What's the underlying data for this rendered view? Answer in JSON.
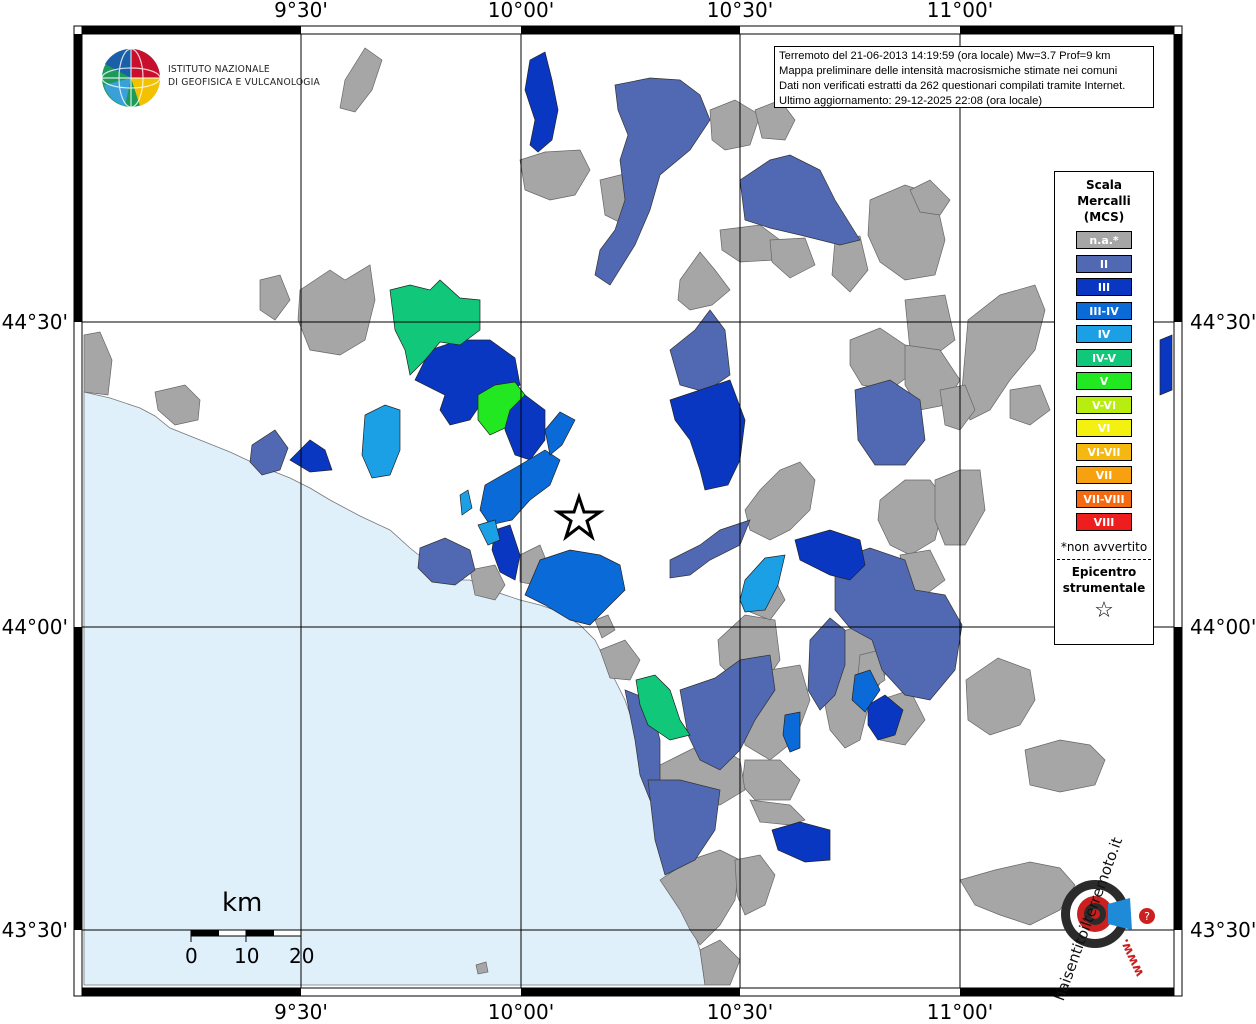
{
  "coordinates": {
    "lon_labels": [
      "9°30'",
      "10°00'",
      "10°30'",
      "11°00'"
    ],
    "lat_labels": [
      "44°30'",
      "44°00'",
      "43°30'"
    ]
  },
  "logo": {
    "line1": "ISTITUTO NAZIONALE",
    "line2": "DI GEOFISICA E VULCANOLOGIA"
  },
  "info": {
    "line1": "Terremoto del 21-06-2013 14:19:59 (ora locale) Mw=3.7 Prof=9 km",
    "line2": "Mappa preliminare delle intensità macrosismiche stimate nei comuni",
    "line3": "Dati non verificati estratti da 262 questionari compilati tramite Internet.",
    "line4": "Ultimo aggiornamento: 29-12-2025 22:08 (ora locale)"
  },
  "legend": {
    "title_line1": "Scala",
    "title_line2": "Mercalli",
    "title_line3": "(MCS)",
    "items": [
      {
        "label": "n.a.*",
        "color": "#a6a6a6"
      },
      {
        "label": "II",
        "color": "#5168b2"
      },
      {
        "label": "III",
        "color": "#0a37c2"
      },
      {
        "label": "III-IV",
        "color": "#0a6ad8"
      },
      {
        "label": "IV",
        "color": "#1ba0e6"
      },
      {
        "label": "IV-V",
        "color": "#10c77a"
      },
      {
        "label": "V",
        "color": "#22e822"
      },
      {
        "label": "V-VI",
        "color": "#b7ee10"
      },
      {
        "label": "VI",
        "color": "#f4f010"
      },
      {
        "label": "VI-VII",
        "color": "#f4b810"
      },
      {
        "label": "VII",
        "color": "#f7a010"
      },
      {
        "label": "VII-VIII",
        "color": "#f56a10"
      },
      {
        "label": "VIII",
        "color": "#ee1e1e"
      }
    ],
    "note": "*non avvertito",
    "epicenter_line1": "Epicentro",
    "epicenter_line2": "strumentale"
  },
  "scale_bar": {
    "unit": "km",
    "labels": [
      "0",
      "10",
      "20"
    ]
  },
  "watermark": {
    "text": "haisentitoilterremoto.it",
    "url_text": "www."
  },
  "colors": {
    "sea": "#dff0fb",
    "not_available": "#a6a6a6",
    "II": "#5168b2",
    "III": "#0a37c2",
    "III_IV": "#0a6ad8",
    "IV": "#1ba0e6",
    "IV_V": "#10c77a",
    "V": "#22e822"
  }
}
